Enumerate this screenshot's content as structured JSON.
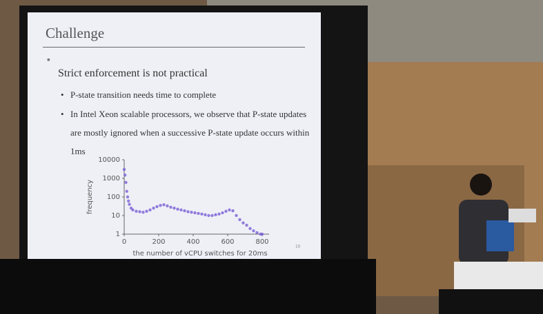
{
  "slide": {
    "title": "Challenge",
    "bullets": [
      {
        "text": "Strict enforcement is not practical",
        "sub": [
          "P-state transition needs time to complete",
          "In Intel Xeon scalable processors, we observe that P-state updates are mostly ignored when a successive P-state update occurs within 1ms"
        ]
      }
    ],
    "page_number": "10"
  },
  "chart_data": {
    "type": "scatter",
    "x_label": "the number of vCPU switches for 20ms",
    "y_label": "frequency",
    "color": "#7b5fd6",
    "log_y": true,
    "xlim": [
      0,
      840
    ],
    "xticks": [
      0,
      200,
      400,
      600,
      800
    ],
    "ylim": [
      1,
      10000
    ],
    "yticks": [
      1,
      10,
      100,
      1000,
      10000
    ],
    "x": [
      0,
      5,
      10,
      15,
      20,
      25,
      30,
      40,
      50,
      70,
      90,
      110,
      130,
      150,
      170,
      190,
      210,
      230,
      250,
      270,
      290,
      310,
      330,
      350,
      370,
      390,
      410,
      430,
      450,
      470,
      490,
      510,
      530,
      550,
      570,
      590,
      610,
      630,
      650,
      670,
      690,
      710,
      730,
      750,
      770,
      790,
      800
    ],
    "values": [
      3000,
      1500,
      600,
      200,
      100,
      60,
      40,
      25,
      20,
      17,
      16,
      15,
      17,
      20,
      25,
      30,
      35,
      38,
      33,
      28,
      25,
      22,
      20,
      18,
      16,
      15,
      14,
      13,
      12,
      11,
      10,
      10,
      11,
      12,
      14,
      17,
      20,
      18,
      10,
      6,
      4,
      3,
      2,
      1.5,
      1.2,
      1,
      1
    ]
  }
}
